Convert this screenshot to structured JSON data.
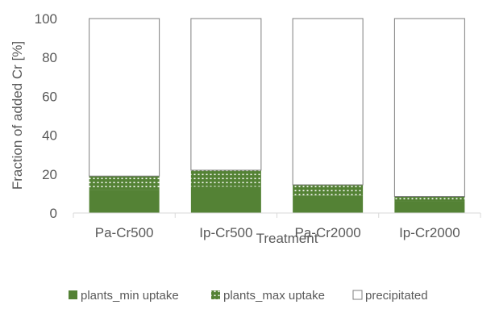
{
  "chart_data": {
    "type": "bar",
    "stacked": true,
    "xlabel": "Treatment",
    "ylabel": "Fraction of added Cr [%]",
    "ylim": [
      0,
      100
    ],
    "yticks": [
      0,
      20,
      40,
      60,
      80,
      100
    ],
    "grid": false,
    "legend_position": "bottom",
    "categories": [
      "Pa-Cr500",
      "Ip-Cr500",
      "Pa-Cr2000",
      "Ip-Cr2000"
    ],
    "series": [
      {
        "name": "plants_min uptake",
        "values": [
          12,
          13.5,
          9,
          6
        ],
        "color": "#548235",
        "pattern": "solid"
      },
      {
        "name": "plants_max uptake",
        "values": [
          7,
          8.5,
          5.5,
          2.5
        ],
        "color": "#548235",
        "pattern": "dotted"
      },
      {
        "name": "precipitated",
        "values": [
          81,
          78,
          85.5,
          91.5
        ],
        "color": "#ffffff",
        "pattern": "outline"
      }
    ]
  }
}
